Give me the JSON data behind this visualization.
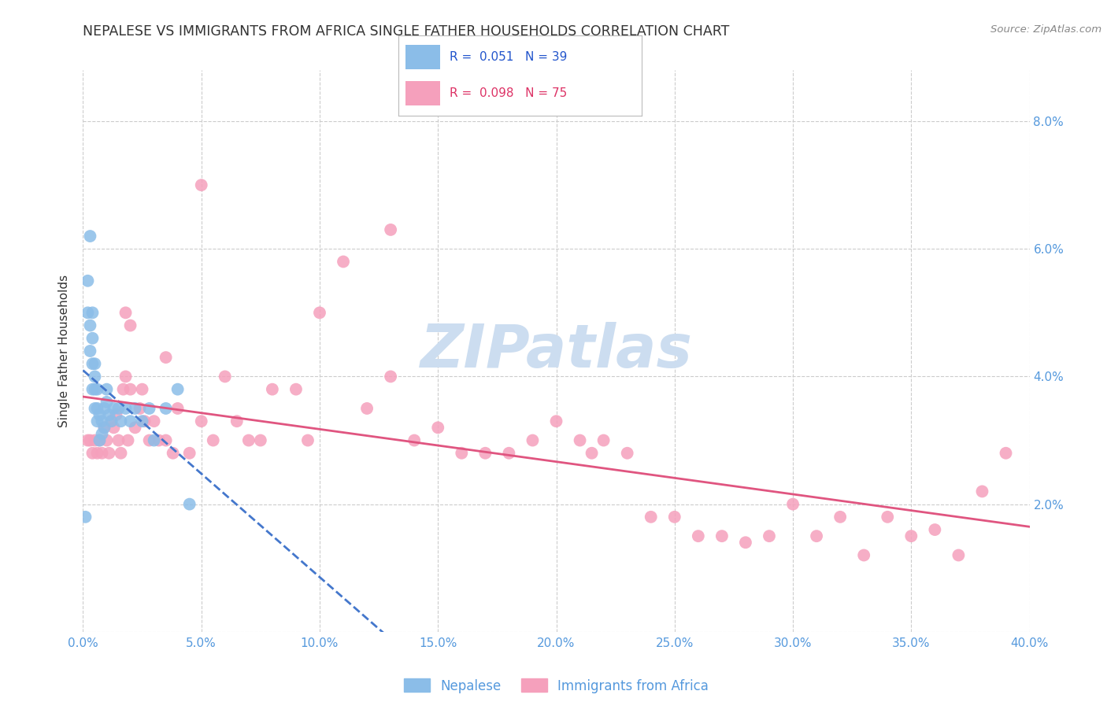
{
  "title": "NEPALESE VS IMMIGRANTS FROM AFRICA SINGLE FATHER HOUSEHOLDS CORRELATION CHART",
  "source": "Source: ZipAtlas.com",
  "ylabel": "Single Father Households",
  "xlim": [
    0.0,
    0.4
  ],
  "ylim": [
    0.0,
    0.088
  ],
  "xticks": [
    0.0,
    0.05,
    0.1,
    0.15,
    0.2,
    0.25,
    0.3,
    0.35,
    0.4
  ],
  "yticks": [
    0.0,
    0.02,
    0.04,
    0.06,
    0.08
  ],
  "xtick_labels": [
    "0.0%",
    "5.0%",
    "10.0%",
    "15.0%",
    "20.0%",
    "25.0%",
    "30.0%",
    "35.0%",
    "40.0%"
  ],
  "ytick_labels": [
    "",
    "2.0%",
    "4.0%",
    "6.0%",
    "8.0%"
  ],
  "nepalese_color": "#8bbde8",
  "africa_color": "#f5a0bc",
  "nepalese_R": 0.051,
  "nepalese_N": 39,
  "africa_R": 0.098,
  "africa_N": 75,
  "nepalese_trend_color": "#4477cc",
  "africa_trend_color": "#e05580",
  "watermark": "ZIPatlas",
  "watermark_color": "#ccddf0",
  "grid_color": "#cccccc",
  "title_color": "#333333",
  "ylabel_color": "#333333",
  "tick_color": "#5599dd",
  "legend_text_color_blue": "#2255cc",
  "legend_text_color_pink": "#dd3366",
  "nepalese_x": [
    0.001,
    0.002,
    0.002,
    0.003,
    0.003,
    0.003,
    0.004,
    0.004,
    0.004,
    0.004,
    0.005,
    0.005,
    0.005,
    0.005,
    0.006,
    0.006,
    0.006,
    0.007,
    0.007,
    0.008,
    0.008,
    0.009,
    0.009,
    0.01,
    0.01,
    0.011,
    0.012,
    0.013,
    0.015,
    0.016,
    0.018,
    0.02,
    0.022,
    0.025,
    0.028,
    0.03,
    0.035,
    0.04,
    0.045
  ],
  "nepalese_y": [
    0.018,
    0.05,
    0.055,
    0.048,
    0.044,
    0.062,
    0.05,
    0.046,
    0.042,
    0.038,
    0.042,
    0.038,
    0.035,
    0.04,
    0.035,
    0.033,
    0.038,
    0.034,
    0.03,
    0.033,
    0.031,
    0.035,
    0.032,
    0.038,
    0.036,
    0.034,
    0.033,
    0.035,
    0.035,
    0.033,
    0.035,
    0.033,
    0.035,
    0.033,
    0.035,
    0.03,
    0.035,
    0.038,
    0.02
  ],
  "africa_x": [
    0.002,
    0.003,
    0.004,
    0.005,
    0.006,
    0.007,
    0.008,
    0.009,
    0.01,
    0.011,
    0.012,
    0.013,
    0.014,
    0.015,
    0.016,
    0.017,
    0.018,
    0.019,
    0.02,
    0.022,
    0.024,
    0.025,
    0.026,
    0.028,
    0.03,
    0.032,
    0.035,
    0.038,
    0.04,
    0.045,
    0.05,
    0.055,
    0.06,
    0.065,
    0.07,
    0.075,
    0.08,
    0.09,
    0.095,
    0.1,
    0.11,
    0.12,
    0.13,
    0.14,
    0.15,
    0.16,
    0.17,
    0.18,
    0.19,
    0.2,
    0.21,
    0.215,
    0.22,
    0.23,
    0.24,
    0.25,
    0.26,
    0.27,
    0.28,
    0.29,
    0.3,
    0.31,
    0.32,
    0.33,
    0.34,
    0.35,
    0.36,
    0.37,
    0.38,
    0.39,
    0.018,
    0.02,
    0.035,
    0.05,
    0.13
  ],
  "africa_y": [
    0.03,
    0.03,
    0.028,
    0.03,
    0.028,
    0.03,
    0.028,
    0.032,
    0.03,
    0.028,
    0.033,
    0.032,
    0.034,
    0.03,
    0.028,
    0.038,
    0.04,
    0.03,
    0.038,
    0.032,
    0.035,
    0.038,
    0.033,
    0.03,
    0.033,
    0.03,
    0.03,
    0.028,
    0.035,
    0.028,
    0.033,
    0.03,
    0.04,
    0.033,
    0.03,
    0.03,
    0.038,
    0.038,
    0.03,
    0.05,
    0.058,
    0.035,
    0.04,
    0.03,
    0.032,
    0.028,
    0.028,
    0.028,
    0.03,
    0.033,
    0.03,
    0.028,
    0.03,
    0.028,
    0.018,
    0.018,
    0.015,
    0.015,
    0.014,
    0.015,
    0.02,
    0.015,
    0.018,
    0.012,
    0.018,
    0.015,
    0.016,
    0.012,
    0.022,
    0.028,
    0.05,
    0.048,
    0.043,
    0.07,
    0.063
  ]
}
